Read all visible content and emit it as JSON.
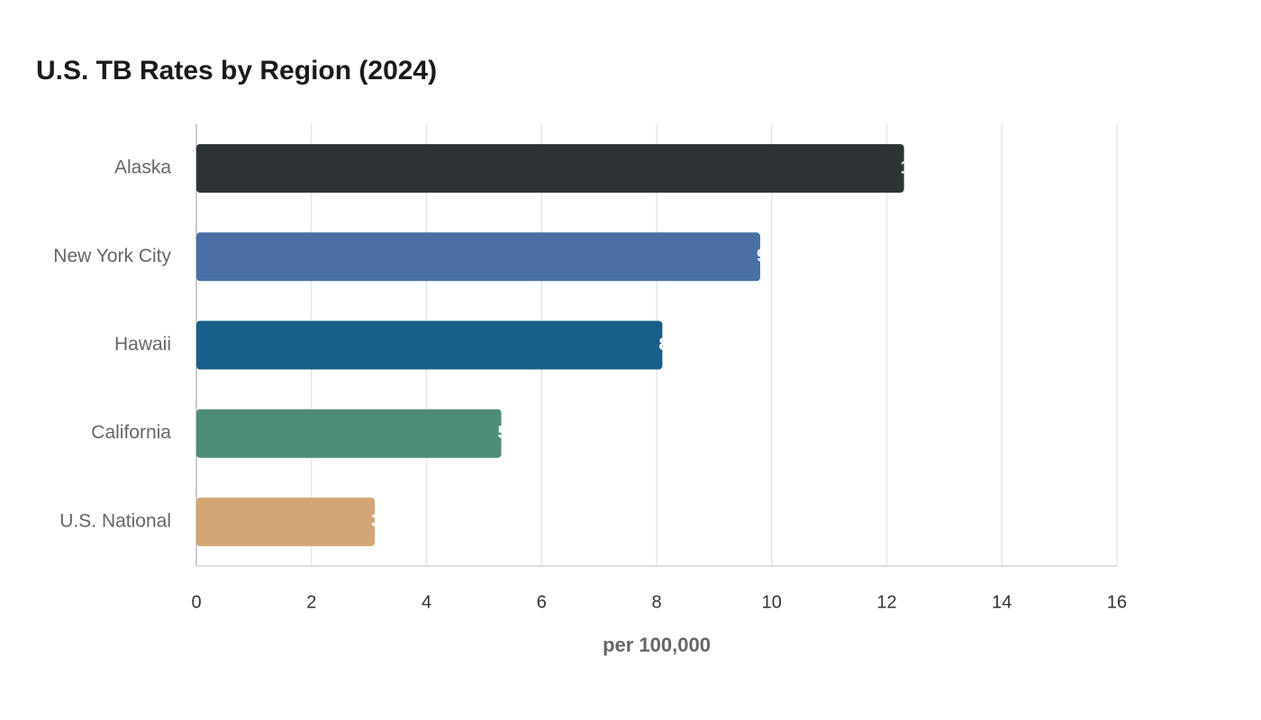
{
  "chart_data": {
    "type": "hbar",
    "title": "U.S. TB Rates by Region (2024)",
    "categories": [
      "Alaska",
      "New York City",
      "Hawaii",
      "California",
      "U.S. National"
    ],
    "values": [
      12.3,
      9.8,
      8.1,
      5.3,
      3.1
    ],
    "colors": [
      "#2e3436",
      "#4a6fa5",
      "#17608a",
      "#4e8c7a",
      "#d4a574"
    ],
    "xlabel": "per 100,000",
    "xlim": [
      0,
      16
    ],
    "xticks": [
      0,
      2,
      4,
      6,
      8,
      10,
      12,
      14,
      16
    ],
    "grid": true
  }
}
